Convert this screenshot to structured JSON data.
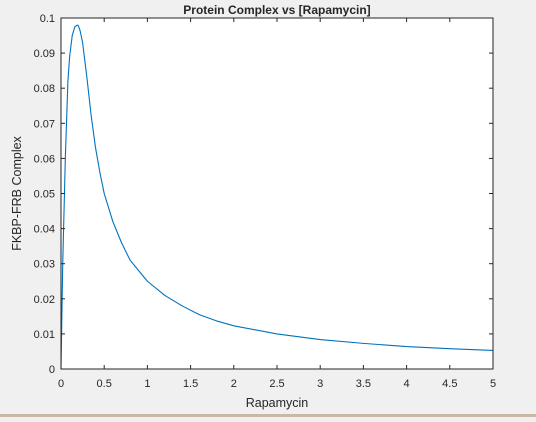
{
  "chart_data": {
    "type": "line",
    "title": "Protein Complex vs [Rapamycin]",
    "xlabel": "Rapamycin",
    "ylabel": "FKBP-FRB Complex",
    "xlim": [
      0,
      5
    ],
    "ylim": [
      0,
      0.1
    ],
    "x_ticks": [
      0,
      0.5,
      1,
      1.5,
      2,
      2.5,
      3,
      3.5,
      4,
      4.5,
      5
    ],
    "x_tick_labels": [
      "0",
      "0.5",
      "1",
      "1.5",
      "2",
      "2.5",
      "3",
      "3.5",
      "4",
      "4.5",
      "5"
    ],
    "y_ticks": [
      0,
      0.01,
      0.02,
      0.03,
      0.04,
      0.05,
      0.06,
      0.07,
      0.08,
      0.09,
      0.1
    ],
    "y_tick_labels": [
      "0",
      "0.01",
      "0.02",
      "0.03",
      "0.04",
      "0.05",
      "0.06",
      "0.07",
      "0.08",
      "0.09",
      "0.1"
    ],
    "grid": false,
    "line_color": "#0072bd",
    "series": [
      {
        "x": [
          0,
          0.02,
          0.05,
          0.08,
          0.1,
          0.13,
          0.16,
          0.19,
          0.2,
          0.22,
          0.25,
          0.3,
          0.35,
          0.4,
          0.45,
          0.5,
          0.6,
          0.7,
          0.8,
          0.9,
          1.0,
          1.2,
          1.4,
          1.6,
          1.8,
          2.0,
          2.5,
          3.0,
          3.5,
          4.0,
          4.5,
          5.0
        ],
        "y": [
          0,
          0.03,
          0.06,
          0.082,
          0.089,
          0.095,
          0.0975,
          0.098,
          0.0978,
          0.0965,
          0.093,
          0.083,
          0.072,
          0.063,
          0.056,
          0.05,
          0.042,
          0.036,
          0.031,
          0.028,
          0.025,
          0.021,
          0.018,
          0.0155,
          0.0137,
          0.0123,
          0.01,
          0.0084,
          0.0073,
          0.0064,
          0.0058,
          0.0053
        ]
      }
    ]
  }
}
